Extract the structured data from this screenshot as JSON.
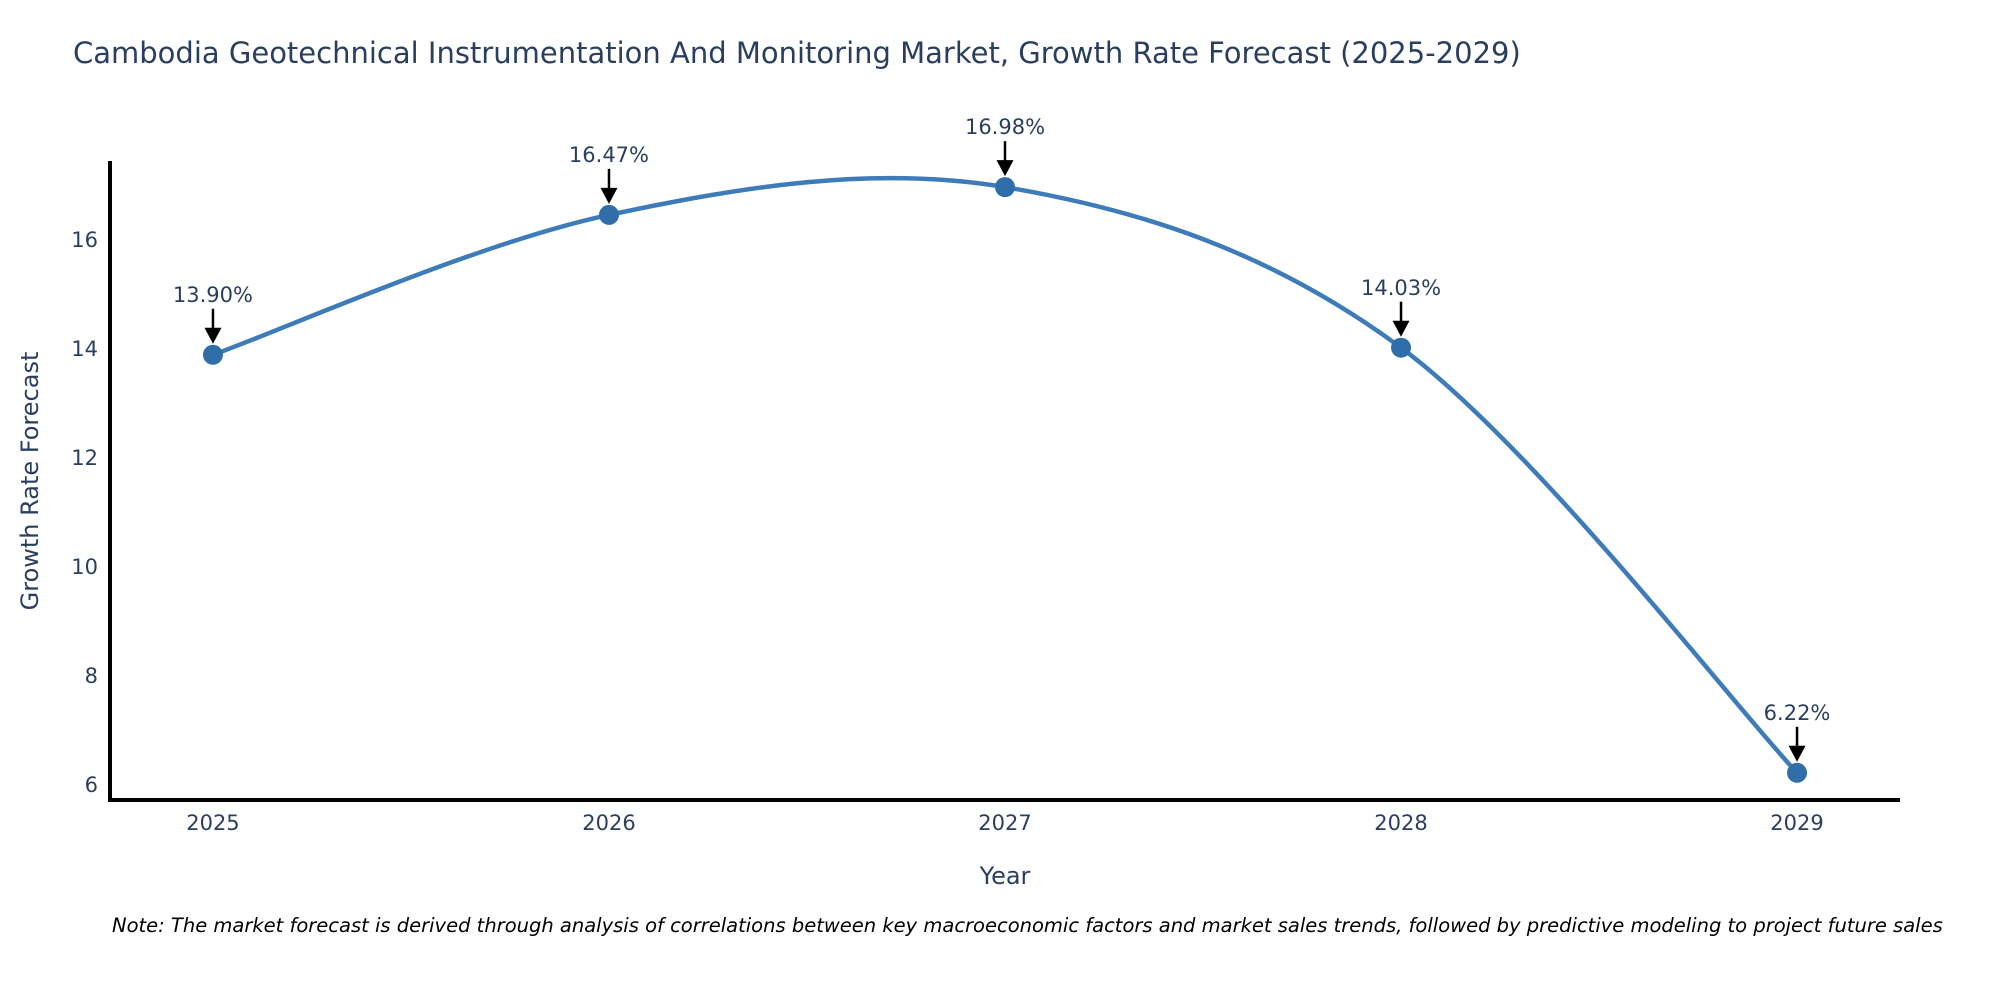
{
  "note": {
    "text": "Note: The market forecast is derived through analysis of correlations between key macroeconomic factors and market sales trends, followed by predictive modeling to project future sales"
  },
  "chart_data": {
    "type": "line",
    "title": "Cambodia Geotechnical Instrumentation And Monitoring Market, Growth Rate Forecast (2025-2029)",
    "xlabel": "Year",
    "ylabel": "Growth Rate Forecast",
    "x": [
      2025,
      2026,
      2027,
      2028,
      2029
    ],
    "values": [
      13.9,
      16.47,
      16.98,
      14.03,
      6.22
    ],
    "point_labels": [
      "13.90%",
      "16.47%",
      "16.98%",
      "14.03%",
      "6.22%"
    ],
    "xticks": [
      "2025",
      "2026",
      "2027",
      "2028",
      "2029"
    ],
    "xtick_values": [
      2025,
      2026,
      2027,
      2028,
      2029
    ],
    "yticks": [
      "6",
      "8",
      "10",
      "12",
      "14",
      "16"
    ],
    "ytick_values": [
      6,
      8,
      10,
      12,
      14,
      16
    ],
    "xlim": [
      2024.74,
      2029.26
    ],
    "ylim": [
      5.72,
      17.46
    ],
    "line_shape": "spline",
    "grid": false,
    "legend": "none",
    "colors": {
      "line": "#3e7cb9",
      "marker": "#2f6ea9",
      "axis": "#000000",
      "text": "#2a3f5f",
      "annotation": "#2a3f5f",
      "arrow": "#000000",
      "background": "#ffffff"
    }
  }
}
